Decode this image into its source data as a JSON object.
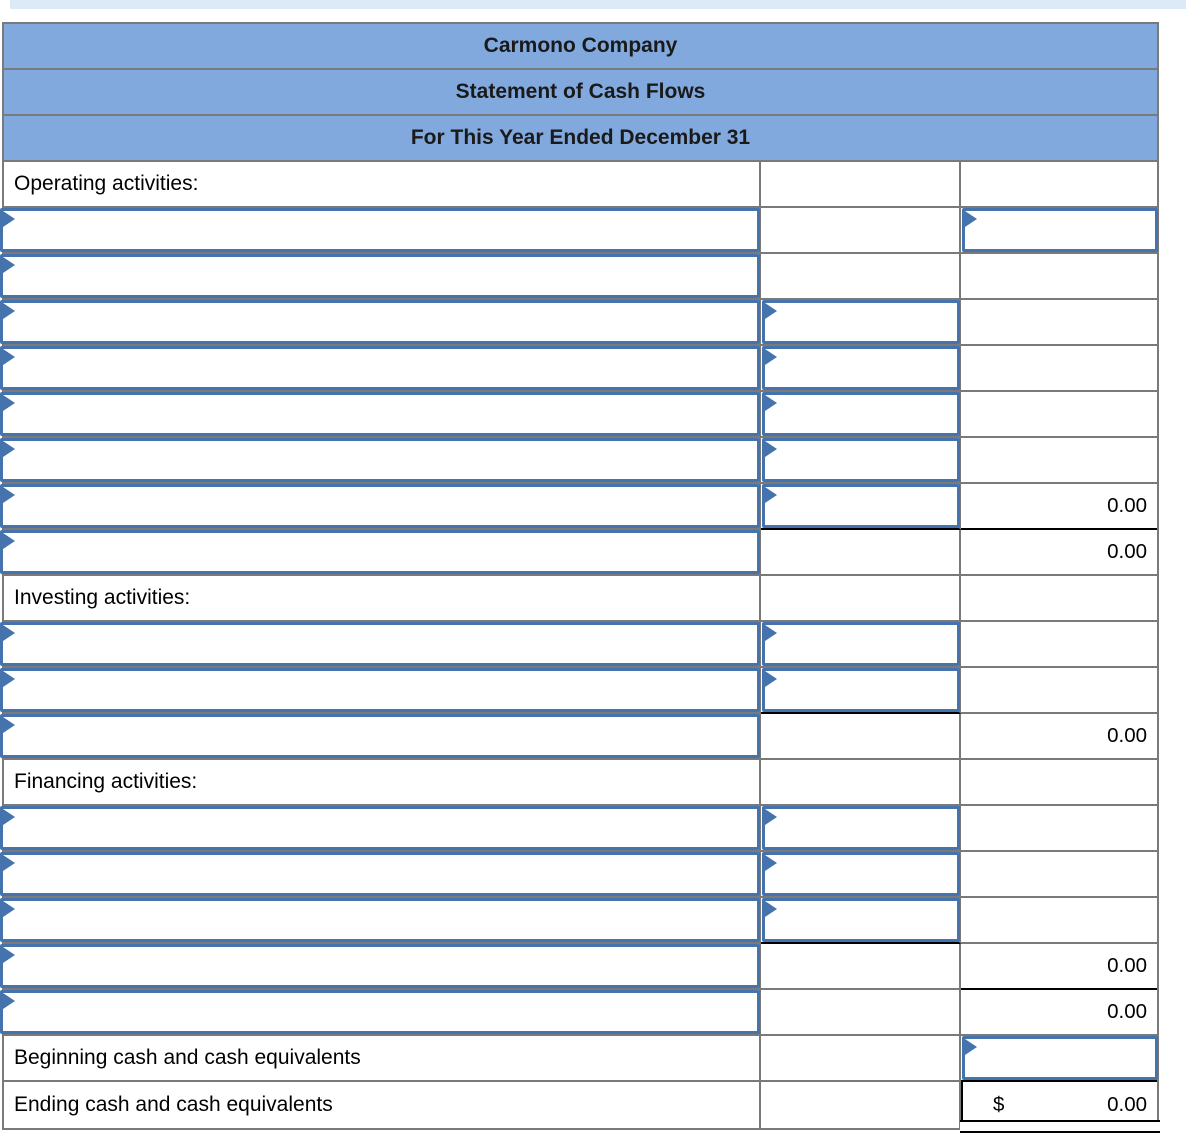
{
  "page": {
    "top_strip_color": "#dce9f7"
  },
  "colors": {
    "header_background": "#82a9de",
    "gridline": "#7a7a7a",
    "input_border": "#4473ae",
    "marker": "#4473ae",
    "total_rule": "#000000"
  },
  "statement": {
    "title": "Carmono Company",
    "subtitle": "Statement of Cash Flows",
    "period": "For This Year Ended December 31",
    "rows": [
      {
        "kind": "section",
        "label": "Operating activities:"
      },
      {
        "kind": "entry",
        "inputs": [
          "c1",
          "c3"
        ]
      },
      {
        "kind": "entry",
        "inputs": [
          "c1"
        ]
      },
      {
        "kind": "entry",
        "inputs": [
          "c1",
          "c2"
        ]
      },
      {
        "kind": "entry",
        "inputs": [
          "c1",
          "c2"
        ]
      },
      {
        "kind": "entry",
        "inputs": [
          "c1",
          "c2"
        ]
      },
      {
        "kind": "entry",
        "inputs": [
          "c1",
          "c2"
        ]
      },
      {
        "kind": "entry",
        "inputs": [
          "c1",
          "c2"
        ],
        "value": "0.00",
        "lines": [
          "c2",
          "c3"
        ]
      },
      {
        "kind": "entry",
        "inputs": [
          "c1"
        ],
        "value": "0.00"
      },
      {
        "kind": "section",
        "label": "Investing activities:"
      },
      {
        "kind": "entry",
        "inputs": [
          "c1",
          "c2"
        ]
      },
      {
        "kind": "entry",
        "inputs": [
          "c1",
          "c2"
        ],
        "lines": [
          "c2"
        ]
      },
      {
        "kind": "entry",
        "inputs": [
          "c1"
        ],
        "value": "0.00"
      },
      {
        "kind": "section",
        "label": "Financing activities:"
      },
      {
        "kind": "entry",
        "inputs": [
          "c1",
          "c2"
        ]
      },
      {
        "kind": "entry",
        "inputs": [
          "c1",
          "c2"
        ]
      },
      {
        "kind": "entry",
        "inputs": [
          "c1",
          "c2"
        ],
        "lines": [
          "c2"
        ]
      },
      {
        "kind": "entry",
        "inputs": [
          "c1"
        ],
        "value": "0.00",
        "lines": [
          "c3"
        ]
      },
      {
        "kind": "entry",
        "inputs": [
          "c1"
        ],
        "value": "0.00"
      },
      {
        "kind": "label",
        "label": "Beginning cash and cash equivalents",
        "inputs": [
          "c3"
        ],
        "lines": [
          "c3"
        ]
      },
      {
        "kind": "label",
        "label": "Ending cash and cash equivalents",
        "prefix": "$",
        "value": "0.00",
        "total": true
      }
    ]
  }
}
